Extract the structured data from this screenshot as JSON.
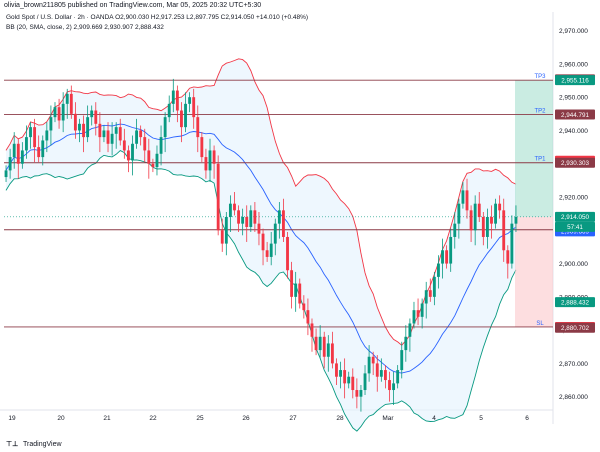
{
  "header": {
    "text": "olivia_brown211805 published on TradingView.com, Mar 05, 2025 20:32 UTC+5:30"
  },
  "legend": {
    "line1": "Gold Spot / U.S. Dollar · 2h · OANDA  O2,900.030  H2,917.253  L2,897.795  C2,914.050  +14.010 (+0.48%)",
    "line2": "BB (20, SMA, close, 2)  2,909.669  2,930.907  2,888.432"
  },
  "footer": {
    "logo": "⊤⊥",
    "text": "TradingView"
  },
  "colors": {
    "up": "#089981",
    "down": "#f23645",
    "basis": "#2962ff",
    "upper": "#f23645",
    "lower": "#089981",
    "band_fill": "#e3f2fd",
    "hline": "#8b3a46",
    "tp_fill": "#a7dfcf",
    "sl_fill": "#fbc8cc",
    "tp_text": "#2962ff"
  },
  "chart_data": {
    "type": "candlestick",
    "title": "Gold Spot / U.S. Dollar · 2h · OANDA",
    "x_ticks": [
      "19",
      "20",
      "21",
      "22",
      "25",
      "26",
      "27",
      "28",
      "Mar",
      "4",
      "5",
      "6"
    ],
    "y_ticks": [
      2860,
      2870,
      2880,
      2890,
      2900,
      2910,
      2920,
      2930,
      2940,
      2950,
      2960,
      2970
    ],
    "ylim": [
      2856,
      2975
    ],
    "candles_close": [
      2928,
      2932,
      2936,
      2930,
      2934,
      2938,
      2941,
      2935,
      2932,
      2937,
      2940,
      2944,
      2947,
      2943,
      2948,
      2951,
      2945,
      2940,
      2942,
      2938,
      2944,
      2946,
      2942,
      2938,
      2940,
      2936,
      2939,
      2941,
      2937,
      2934,
      2931,
      2936,
      2940,
      2938,
      2934,
      2930,
      2929,
      2933,
      2938,
      2944,
      2948,
      2952,
      2946,
      2941,
      2948,
      2950,
      2944,
      2938,
      2932,
      2928,
      2934,
      2930,
      2910,
      2906,
      2914,
      2918,
      2916,
      2912,
      2914,
      2911,
      2916,
      2912,
      2909,
      2904,
      2902,
      2906,
      2912,
      2916,
      2908,
      2898,
      2890,
      2894,
      2888,
      2886,
      2882,
      2878,
      2874,
      2878,
      2872,
      2876,
      2870,
      2866,
      2868,
      2864,
      2866,
      2862,
      2860,
      2862,
      2867,
      2872,
      2870,
      2866,
      2868,
      2865,
      2862,
      2864,
      2868,
      2874,
      2878,
      2882,
      2886,
      2884,
      2888,
      2892,
      2890,
      2896,
      2900,
      2904,
      2900,
      2908,
      2912,
      2918,
      2922,
      2916,
      2910,
      2918,
      2914,
      2908,
      2914,
      2912,
      2918,
      2916,
      2904,
      2900,
      2912,
      2914
    ],
    "bb_upper": 2930.907,
    "bb_basis": 2909.669,
    "bb_lower": 2888.432,
    "last_close": 2914.05,
    "countdown": "57:41",
    "levels": [
      {
        "name": "TP3",
        "value": 2955.116
      },
      {
        "name": "TP2",
        "value": 2944.791
      },
      {
        "name": "TP1",
        "value": 2930.303
      },
      {
        "name": "entry",
        "value": 2910.168
      },
      {
        "name": "SL",
        "value": 2880.948
      }
    ],
    "price_labels": [
      {
        "value": 2955.345,
        "text": "2,955.345",
        "kind": "level"
      },
      {
        "value": 2955.116,
        "text": "2,955.116",
        "kind": "tp"
      },
      {
        "value": 2944.791,
        "text": "2,944.791",
        "kind": "level"
      },
      {
        "value": 2930.907,
        "text": "2,930.907",
        "kind": "upper"
      },
      {
        "value": 2930.303,
        "text": "2,930.303",
        "kind": "level"
      },
      {
        "value": 2914.05,
        "text": "2,914.050",
        "kind": "last"
      },
      {
        "value": 2910.168,
        "text": "2,910.168",
        "kind": "level"
      },
      {
        "value": 2909.923,
        "text": "2,909.923",
        "kind": "sl"
      },
      {
        "value": 2909.669,
        "text": "2,909.669",
        "kind": "basis"
      },
      {
        "value": 2888.432,
        "text": "2,888.432",
        "kind": "lower"
      },
      {
        "value": 2880.948,
        "text": "2,880.948",
        "kind": "sl"
      },
      {
        "value": 2880.702,
        "text": "2,880.702",
        "kind": "level"
      }
    ]
  }
}
